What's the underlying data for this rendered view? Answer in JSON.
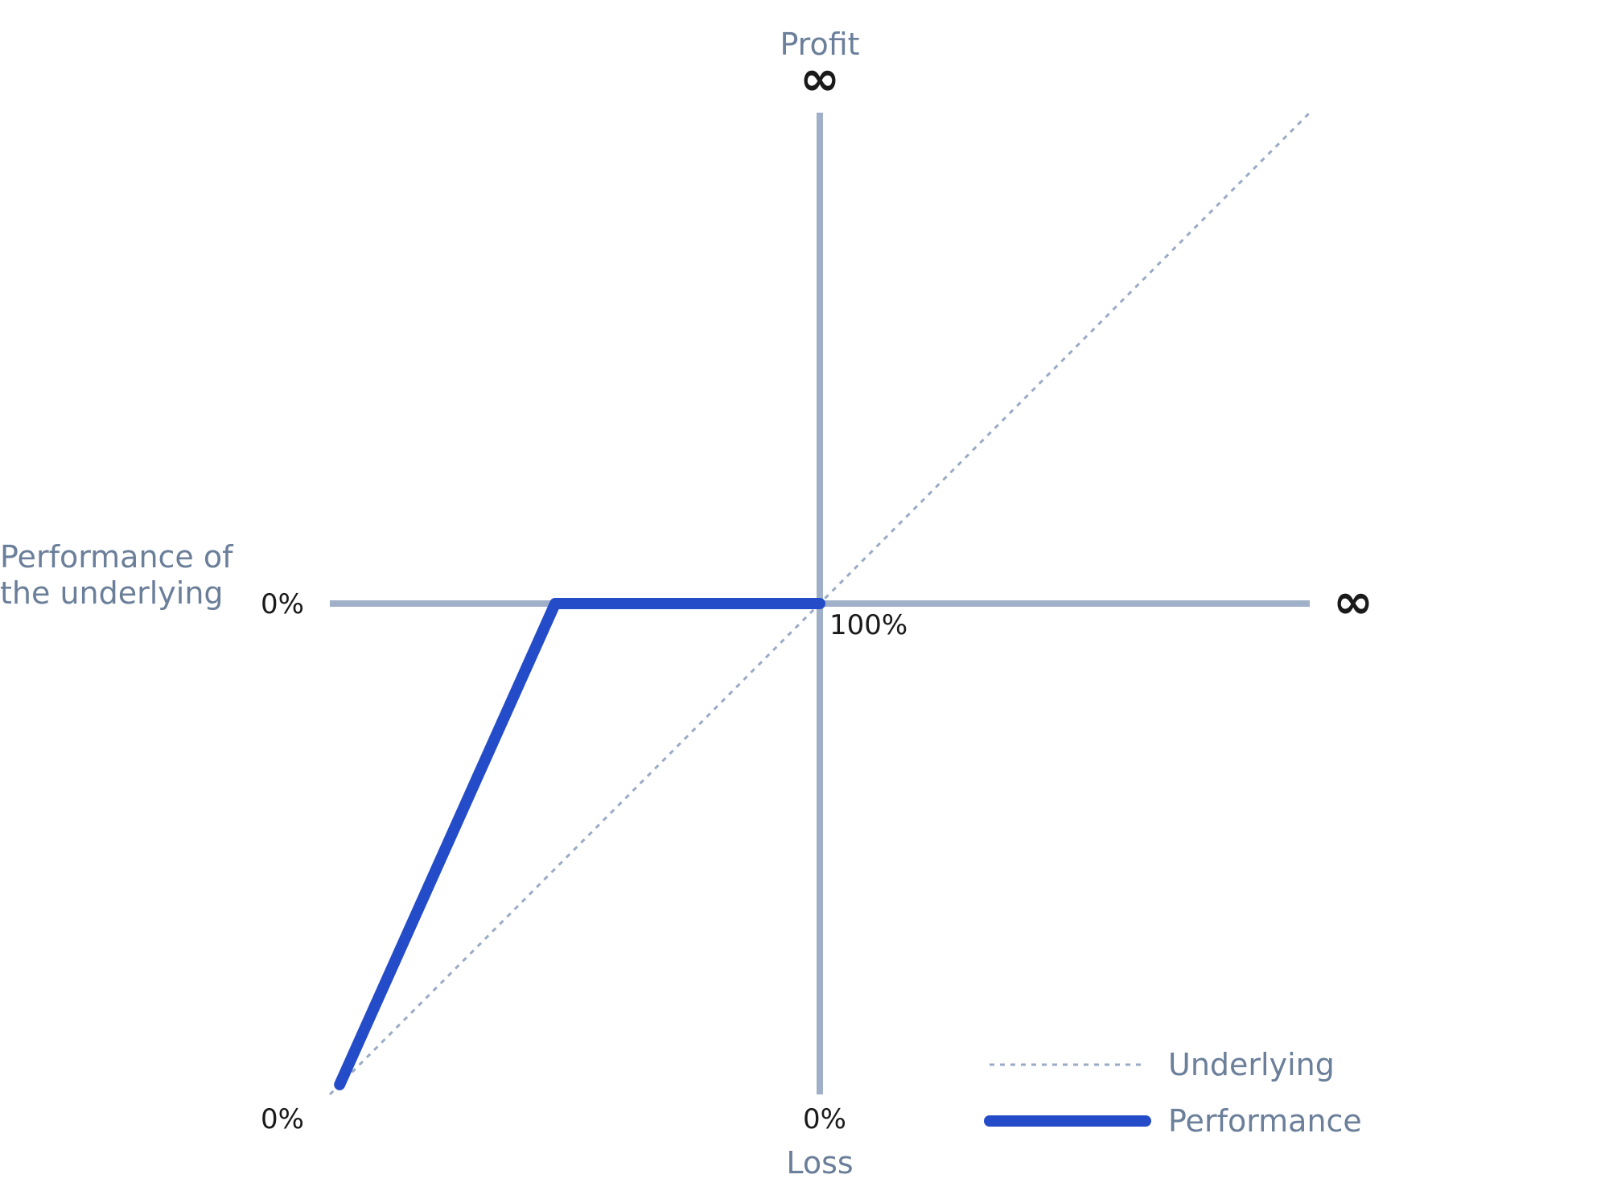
{
  "chart_data": {
    "type": "line",
    "title": "",
    "xlabel": "Performance of the underlying",
    "xlabel_lines": [
      "Performance of",
      "the underlying"
    ],
    "ylabel_top": "Profit",
    "ylabel_bottom": "Loss",
    "x_tick_labels": {
      "origin": "0%",
      "midpoint": "100%",
      "end": "∞"
    },
    "y_tick_labels": {
      "top": "∞",
      "zero": "0%",
      "bottom_left": "0%",
      "bottom_mid": "0%"
    },
    "xlim": [
      0,
      200
    ],
    "ylim": [
      -100,
      100
    ],
    "series": [
      {
        "name": "Underlying",
        "style": "dotted",
        "color": "#9aabc6",
        "x": [
          0,
          200
        ],
        "y": [
          -100,
          100
        ]
      },
      {
        "name": "Performance",
        "style": "solid",
        "color": "#244cc9",
        "x": [
          2,
          46,
          100
        ],
        "y": [
          -98,
          0,
          0
        ]
      }
    ],
    "grid": false,
    "legend_position": "bottom-right"
  },
  "colors": {
    "axis": "#9fb0c8",
    "label": "#6b7f9a",
    "text": "#1a1a1a"
  }
}
